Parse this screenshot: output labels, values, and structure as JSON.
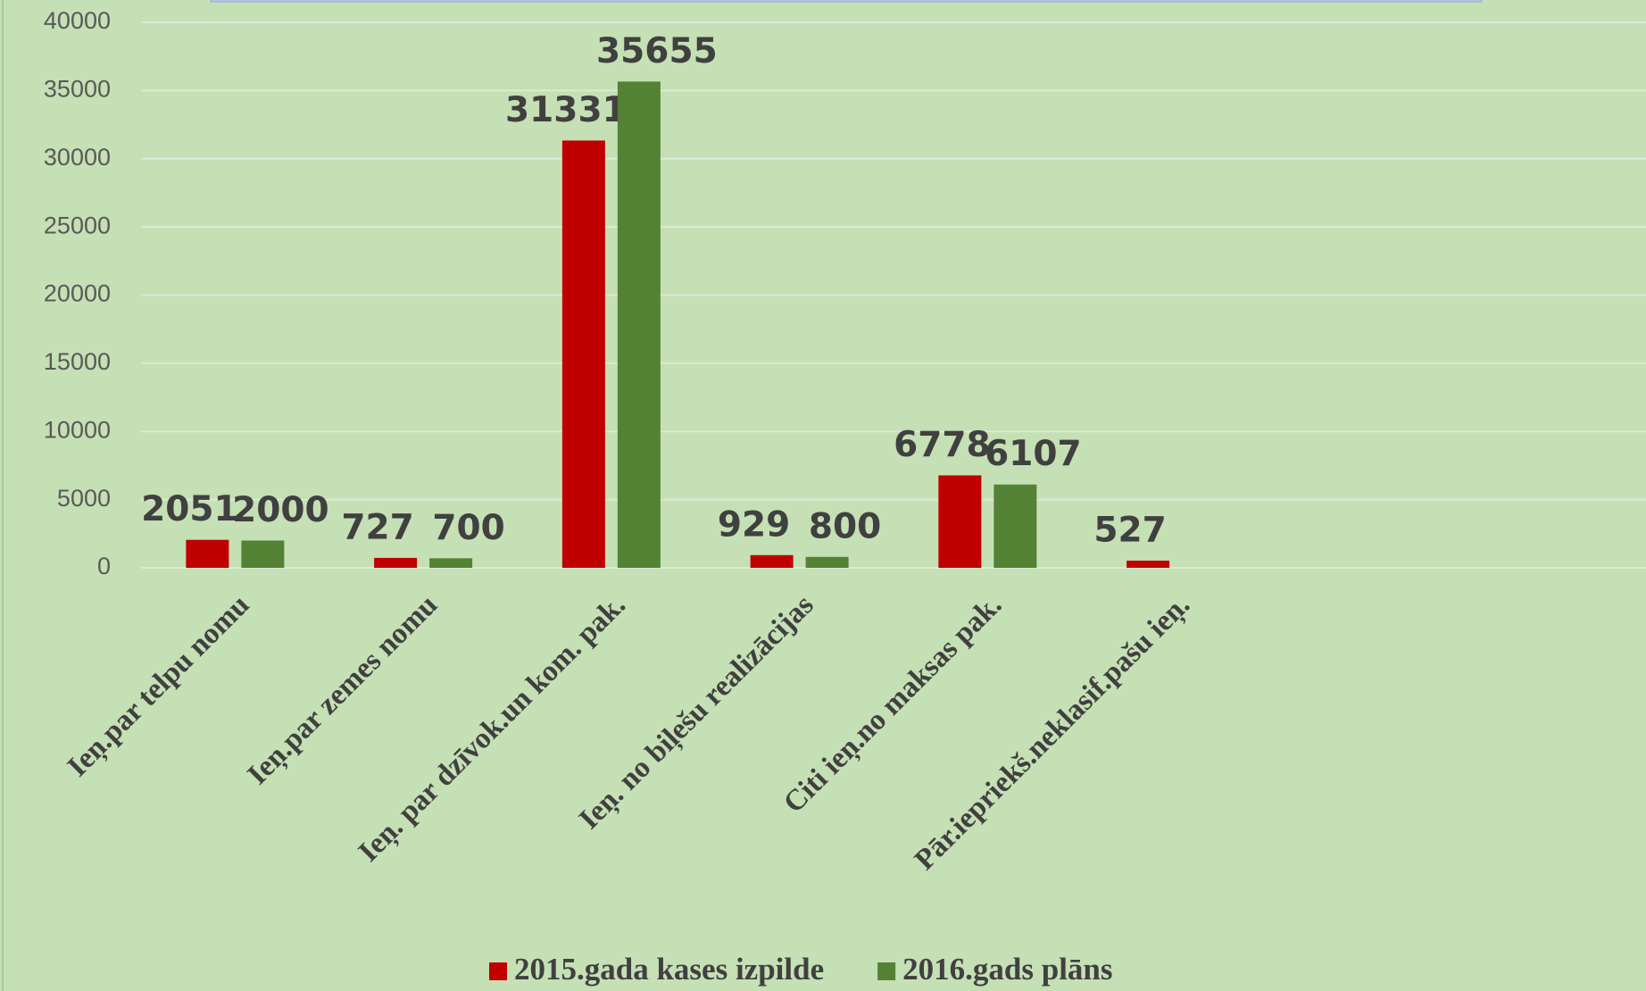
{
  "chart_data": {
    "type": "bar",
    "categories": [
      "Ieņ.par telpu nomu",
      "Ieņ.par zemes nomu",
      "Ieņ. par dzīvok.un kom. pak.",
      "Ieņ. no biļešu realizācijas",
      "Citi ieņ.no maksas pak.",
      "Pār.iepriekš.neklasif.pašu ieņ.",
      null,
      null
    ],
    "series": [
      {
        "name": "2015.gada kases izpilde",
        "color": "#c00000",
        "values": [
          2051,
          727,
          31331,
          929,
          6778,
          527,
          null,
          null
        ]
      },
      {
        "name": "2016.gads plāns",
        "color": "#548235",
        "values": [
          2000,
          700,
          35655,
          800,
          6107,
          null,
          null,
          null
        ]
      }
    ],
    "ylim": [
      0,
      40000
    ],
    "yticks": [
      0,
      5000,
      10000,
      15000,
      20000,
      25000,
      30000,
      35000,
      40000
    ],
    "grid": true,
    "legend": "bottom"
  }
}
